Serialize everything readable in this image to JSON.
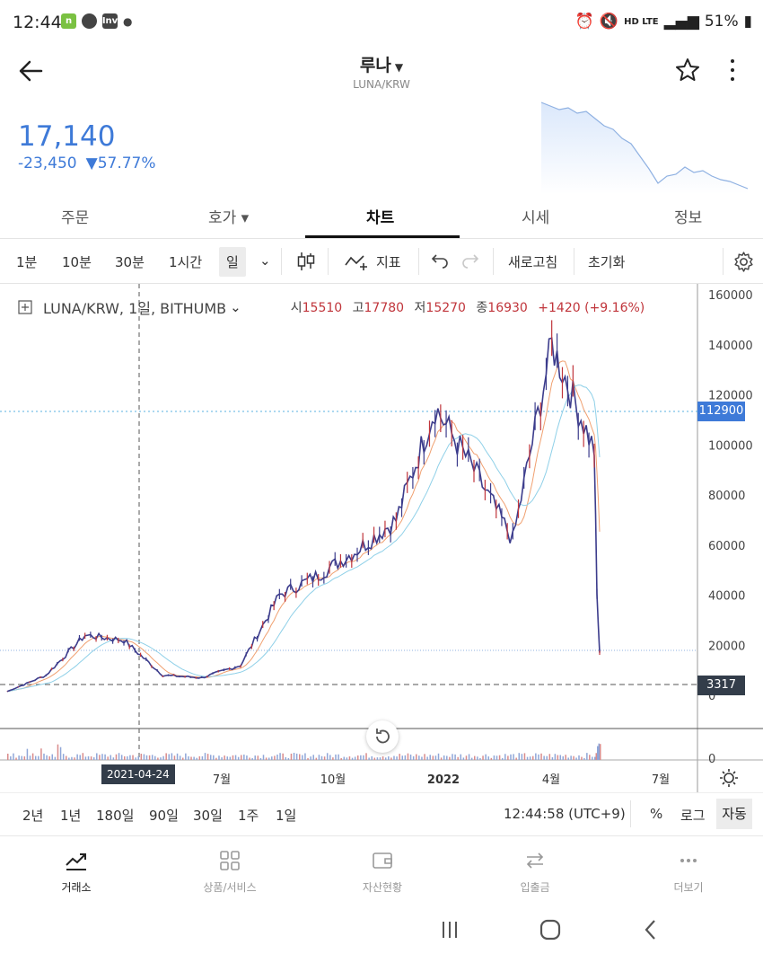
{
  "status": {
    "time": "12:44",
    "right_text": "HD LTE",
    "battery": "51%"
  },
  "header": {
    "title": "루나",
    "subtitle": "LUNA/KRW"
  },
  "price": {
    "current": "17,140",
    "change": "-23,450",
    "change_pct": "▼57.77%"
  },
  "tabs": [
    "주문",
    "호가 ▾",
    "차트",
    "시세",
    "정보"
  ],
  "toolbar": {
    "intervals": [
      "1분",
      "10분",
      "30분",
      "1시간",
      "일"
    ],
    "indicator_label": "지표",
    "refresh_label": "새로고침",
    "reset_label": "초기화"
  },
  "chart_legend": {
    "symbol": "LUNA/KRW, 1일, BITHUMB",
    "open_label": "시",
    "open": "15510",
    "high_label": "고",
    "high": "17780",
    "low_label": "저",
    "low": "15270",
    "close_label": "종",
    "close": "16930",
    "change": "+1420 (+9.16%)"
  },
  "chart_badges": {
    "last_price": "112900",
    "low_marker": "3317",
    "crosshair_date": "2021-04-24"
  },
  "colors": {
    "accent_blue": "#3e7ad8",
    "up_red": "#c0353b",
    "candle": "#3c3c8c",
    "ma_short": "#f0a070",
    "ma_long": "#8fd0e8"
  },
  "chart_data": {
    "type": "line",
    "title": "",
    "y_axis_ticks": [
      "160000",
      "140000",
      "120000",
      "100000",
      "80000",
      "60000",
      "40000",
      "20000",
      "0"
    ],
    "x_axis_ticks": [
      "7월",
      "10월",
      "2022",
      "4월",
      "7월"
    ],
    "volume_axis_tick": "0",
    "ylim": [
      0,
      160000
    ],
    "x": [
      "2021-02",
      "2021-03",
      "2021-04",
      "2021-05",
      "2021-06",
      "2021-07",
      "2021-08",
      "2021-09",
      "2021-10",
      "2021-11",
      "2021-12",
      "2022-01",
      "2022-02",
      "2022-03",
      "2022-04",
      "2022-05-10",
      "2022-05-11",
      "2022-05-12"
    ],
    "series": [
      {
        "values": [
          1500,
          8000,
          24000,
          22000,
          8000,
          7000,
          12000,
          40000,
          48000,
          58000,
          70000,
          115000,
          90000,
          62000,
          140000,
          98000,
          40000,
          17000
        ]
      }
    ]
  },
  "range_bar": {
    "ranges": [
      "2년",
      "1년",
      "180일",
      "90일",
      "30일",
      "1주",
      "1일"
    ],
    "clock": "12:44:58 (UTC+9)",
    "percent": "%",
    "log": "로그",
    "auto": "자동"
  },
  "bottom_nav": [
    "거래소",
    "상품/서비스",
    "자산현황",
    "입출금",
    "더보기"
  ]
}
